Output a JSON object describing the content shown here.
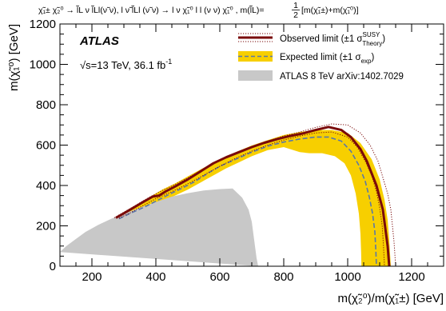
{
  "chart_data": {
    "type": "area",
    "title": "χ̃₁^± χ̃₂^0 → l̃_L ν l̃_L l(ν̃ ν), l ν̃ l̃_L l (ν̃ ν) → l ν χ̃₁^0 l l (ν ν) χ̃₁^0 , m(l̃_L) = ½[m(χ̃₁^±)+m(χ̃₁^0)]",
    "title_parts": {
      "process": "χ̃₁± χ̃₂⁰ → l̃L ν l̃Ll(ν̃ ν), l ν̃ l̃Ll (ν̃ ν) → l ν χ̃₁⁰ l l (ν ν) χ̃₁⁰ , m(l̃L)=",
      "frac_num": "1",
      "frac_den": "2",
      "mass_sum": "[m(χ̃₁±)+m(χ̃₁⁰)]"
    },
    "xlabel": "m(χ̃₂⁰)/m(χ̃₁±) [GeV]",
    "ylabel": "m(χ̃₁⁰) [GeV]",
    "xlim": [
      100,
      1300
    ],
    "ylim": [
      0,
      1200
    ],
    "x_ticks": [
      200,
      400,
      600,
      800,
      1000,
      1200
    ],
    "y_ticks": [
      0,
      200,
      400,
      600,
      800,
      1000,
      1200
    ],
    "grid": false,
    "legend_position": "top-right",
    "experiment": "ATLAS",
    "energy_lumi": "√s=13 TeV, 36.1 fb",
    "energy_lumi_sup": "-1",
    "legend": {
      "observed": {
        "label": "Observed limit (±1 σ",
        "sup": "SUSY",
        "sub": "Theory",
        "close": ")"
      },
      "expected": {
        "label": "Expected limit (±1 σ",
        "sub": "exp",
        "close": ")"
      },
      "previous": {
        "label": "ATLAS 8 TeV arXiv:1402.7029"
      }
    },
    "colors": {
      "observed": "#7a0a0a",
      "expected_band": "#f7cf00",
      "expected_line": "#5a78a8",
      "previous": "#c8c8c8"
    },
    "series": [
      {
        "name": "Observed limit",
        "style": "solid",
        "x": [
          275,
          300,
          330,
          360,
          390,
          410,
          430,
          460,
          500,
          540,
          580,
          620,
          660,
          700,
          740,
          780,
          820,
          860,
          900,
          940,
          980,
          1010,
          1040,
          1060,
          1075,
          1090,
          1100,
          1110,
          1115,
          1120,
          1125,
          1128,
          1130
        ],
        "y": [
          240,
          262,
          290,
          318,
          345,
          350,
          370,
          395,
          430,
          470,
          510,
          540,
          565,
          590,
          612,
          630,
          645,
          658,
          675,
          690,
          675,
          640,
          580,
          520,
          460,
          400,
          340,
          280,
          220,
          160,
          100,
          40,
          0
        ]
      },
      {
        "name": "Observed limit +1σ",
        "style": "dotted",
        "x": [
          270,
          300,
          340,
          380,
          420,
          460,
          500,
          550,
          600,
          650,
          700,
          750,
          800,
          850,
          900,
          950,
          1000,
          1040,
          1070,
          1095,
          1110,
          1125,
          1135,
          1140,
          1145,
          1148,
          1150
        ],
        "y": [
          240,
          268,
          305,
          342,
          375,
          405,
          438,
          482,
          522,
          560,
          592,
          620,
          645,
          665,
          688,
          705,
          700,
          660,
          600,
          520,
          440,
          360,
          280,
          200,
          120,
          50,
          0
        ]
      },
      {
        "name": "Observed limit -1σ",
        "style": "dotted",
        "x": [
          285,
          320,
          360,
          400,
          440,
          480,
          520,
          560,
          600,
          650,
          700,
          750,
          800,
          850,
          900,
          950,
          1000,
          1030,
          1055,
          1075,
          1090,
          1100,
          1108,
          1112,
          1115
        ],
        "y": [
          238,
          265,
          300,
          335,
          362,
          392,
          425,
          460,
          495,
          535,
          570,
          600,
          625,
          645,
          660,
          665,
          640,
          590,
          520,
          450,
          370,
          290,
          200,
          100,
          0
        ]
      },
      {
        "name": "Expected limit",
        "style": "dashed",
        "x": [
          285,
          320,
          360,
          400,
          440,
          480,
          520,
          560,
          600,
          650,
          700,
          750,
          800,
          850,
          900,
          940,
          980,
          1010,
          1035,
          1055,
          1068,
          1078,
          1085,
          1088,
          1090
        ],
        "y": [
          235,
          262,
          290,
          322,
          355,
          385,
          418,
          458,
          495,
          530,
          565,
          595,
          615,
          630,
          640,
          640,
          620,
          570,
          500,
          420,
          340,
          260,
          170,
          80,
          0
        ]
      },
      {
        "name": "Expected limit +1σ",
        "style": "band-edge",
        "x": [
          275,
          300,
          340,
          380,
          420,
          460,
          500,
          550,
          600,
          650,
          700,
          750,
          800,
          850,
          900,
          950,
          1000,
          1040,
          1075,
          1100,
          1115,
          1125,
          1130,
          1133,
          1135
        ],
        "y": [
          240,
          268,
          305,
          342,
          380,
          410,
          445,
          488,
          528,
          565,
          598,
          625,
          650,
          665,
          675,
          675,
          660,
          610,
          530,
          430,
          330,
          230,
          130,
          50,
          0
        ]
      },
      {
        "name": "Expected limit -1σ",
        "style": "band-edge",
        "x": [
          300,
          340,
          380,
          420,
          460,
          500,
          540,
          580,
          620,
          660,
          700,
          750,
          800,
          850,
          880,
          920,
          960,
          990,
          1010,
          1025,
          1035,
          1040,
          1042,
          1043
        ],
        "y": [
          235,
          260,
          290,
          320,
          350,
          380,
          415,
          450,
          485,
          515,
          545,
          575,
          590,
          565,
          560,
          560,
          545,
          510,
          450,
          360,
          260,
          160,
          70,
          0
        ]
      },
      {
        "name": "ATLAS 8 TeV arXiv:1402.7029",
        "style": "filled",
        "x": [
          100,
          120,
          150,
          180,
          220,
          260,
          300,
          350,
          400,
          450,
          500,
          550,
          600,
          640,
          670,
          690,
          700,
          705,
          710,
          715,
          720,
          720
        ],
        "y": [
          70,
          100,
          135,
          170,
          205,
          235,
          260,
          290,
          318,
          345,
          362,
          375,
          382,
          385,
          340,
          280,
          220,
          160,
          100,
          40,
          0,
          0
        ]
      }
    ]
  }
}
